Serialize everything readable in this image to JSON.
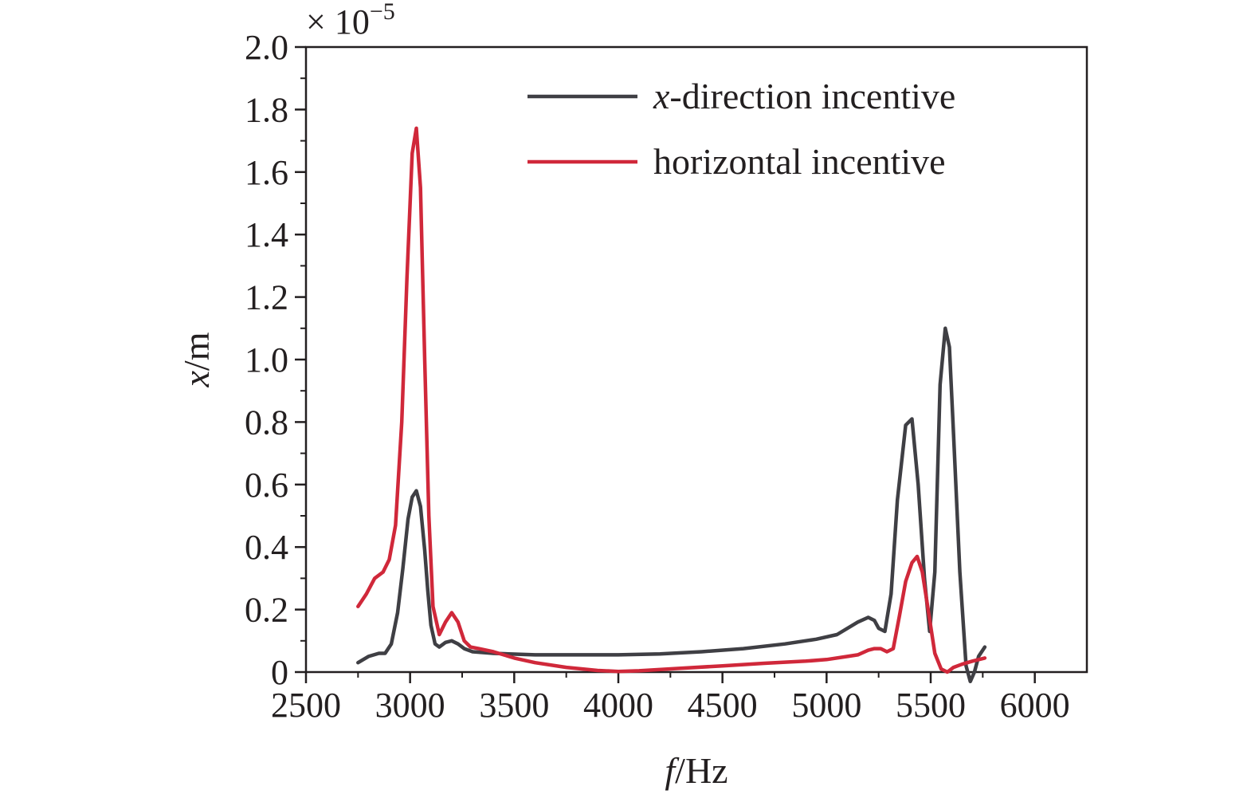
{
  "chart_data": {
    "type": "line",
    "title": "",
    "xlabel": "",
    "ylabel": "",
    "x_axis": {
      "label_italic": "f",
      "label_rest": "/Hz",
      "range": [
        2500,
        6250
      ],
      "ticks": [
        2500,
        3000,
        3500,
        4000,
        4500,
        5000,
        5500,
        6000
      ],
      "tick_labels": [
        "2500",
        "3000",
        "3500",
        "4000",
        "4500",
        "5000",
        "5500",
        "6000"
      ]
    },
    "y_axis": {
      "label_italic": "x",
      "label_rest": "/m",
      "range": [
        0,
        2.0
      ],
      "ticks": [
        0,
        0.2,
        0.4,
        0.6,
        0.8,
        1.0,
        1.2,
        1.4,
        1.6,
        1.8,
        2.0
      ],
      "tick_labels": [
        "0",
        "0.2",
        "0.4",
        "0.6",
        "0.8",
        "1.0",
        "1.2",
        "1.4",
        "1.6",
        "1.8",
        "2.0"
      ],
      "multiplier_prefix": "× 10",
      "multiplier_exponent": "−5"
    },
    "grid": false,
    "legend": {
      "position": "top-right",
      "entries": [
        {
          "italic": "x",
          "rest": "-direction incentive",
          "color": "#3f3f44"
        },
        {
          "italic": "",
          "rest": "horizontal incentive",
          "color": "#d0283a"
        }
      ]
    },
    "series": [
      {
        "name": "x-direction incentive",
        "color": "#3f3f44",
        "x": [
          2750,
          2800,
          2850,
          2880,
          2910,
          2940,
          2965,
          2990,
          3010,
          3030,
          3050,
          3070,
          3085,
          3100,
          3120,
          3140,
          3170,
          3200,
          3230,
          3260,
          3300,
          3400,
          3600,
          3800,
          4000,
          4200,
          4400,
          4600,
          4800,
          4950,
          5050,
          5150,
          5200,
          5230,
          5250,
          5280,
          5310,
          5340,
          5380,
          5410,
          5440,
          5470,
          5495,
          5520,
          5545,
          5570,
          5590,
          5610,
          5640,
          5670,
          5690,
          5710,
          5730,
          5760
        ],
        "y": [
          0.03,
          0.05,
          0.06,
          0.06,
          0.09,
          0.19,
          0.33,
          0.49,
          0.56,
          0.58,
          0.53,
          0.39,
          0.26,
          0.15,
          0.09,
          0.08,
          0.095,
          0.1,
          0.09,
          0.075,
          0.065,
          0.06,
          0.055,
          0.055,
          0.055,
          0.058,
          0.065,
          0.075,
          0.09,
          0.105,
          0.12,
          0.16,
          0.175,
          0.165,
          0.14,
          0.13,
          0.25,
          0.55,
          0.79,
          0.81,
          0.6,
          0.3,
          0.13,
          0.32,
          0.92,
          1.1,
          1.04,
          0.76,
          0.32,
          0.02,
          -0.03,
          0.0,
          0.05,
          0.08
        ]
      },
      {
        "name": "horizontal incentive",
        "color": "#d0283a",
        "x": [
          2750,
          2790,
          2830,
          2870,
          2900,
          2930,
          2960,
          2985,
          3010,
          3030,
          3050,
          3070,
          3090,
          3110,
          3140,
          3170,
          3200,
          3230,
          3260,
          3290,
          3330,
          3400,
          3500,
          3600,
          3750,
          3900,
          4000,
          4100,
          4300,
          4500,
          4700,
          4900,
          5000,
          5100,
          5150,
          5200,
          5230,
          5260,
          5290,
          5320,
          5350,
          5380,
          5410,
          5435,
          5460,
          5490,
          5520,
          5550,
          5580,
          5610,
          5650,
          5700,
          5760
        ],
        "y": [
          0.21,
          0.25,
          0.3,
          0.32,
          0.36,
          0.47,
          0.8,
          1.26,
          1.66,
          1.74,
          1.55,
          1.0,
          0.5,
          0.21,
          0.12,
          0.16,
          0.19,
          0.16,
          0.1,
          0.08,
          0.075,
          0.065,
          0.045,
          0.03,
          0.015,
          0.005,
          0.002,
          0.004,
          0.012,
          0.02,
          0.028,
          0.035,
          0.04,
          0.05,
          0.055,
          0.07,
          0.075,
          0.075,
          0.065,
          0.075,
          0.18,
          0.29,
          0.35,
          0.37,
          0.32,
          0.19,
          0.06,
          0.01,
          0.0,
          0.015,
          0.025,
          0.035,
          0.045
        ]
      }
    ]
  }
}
